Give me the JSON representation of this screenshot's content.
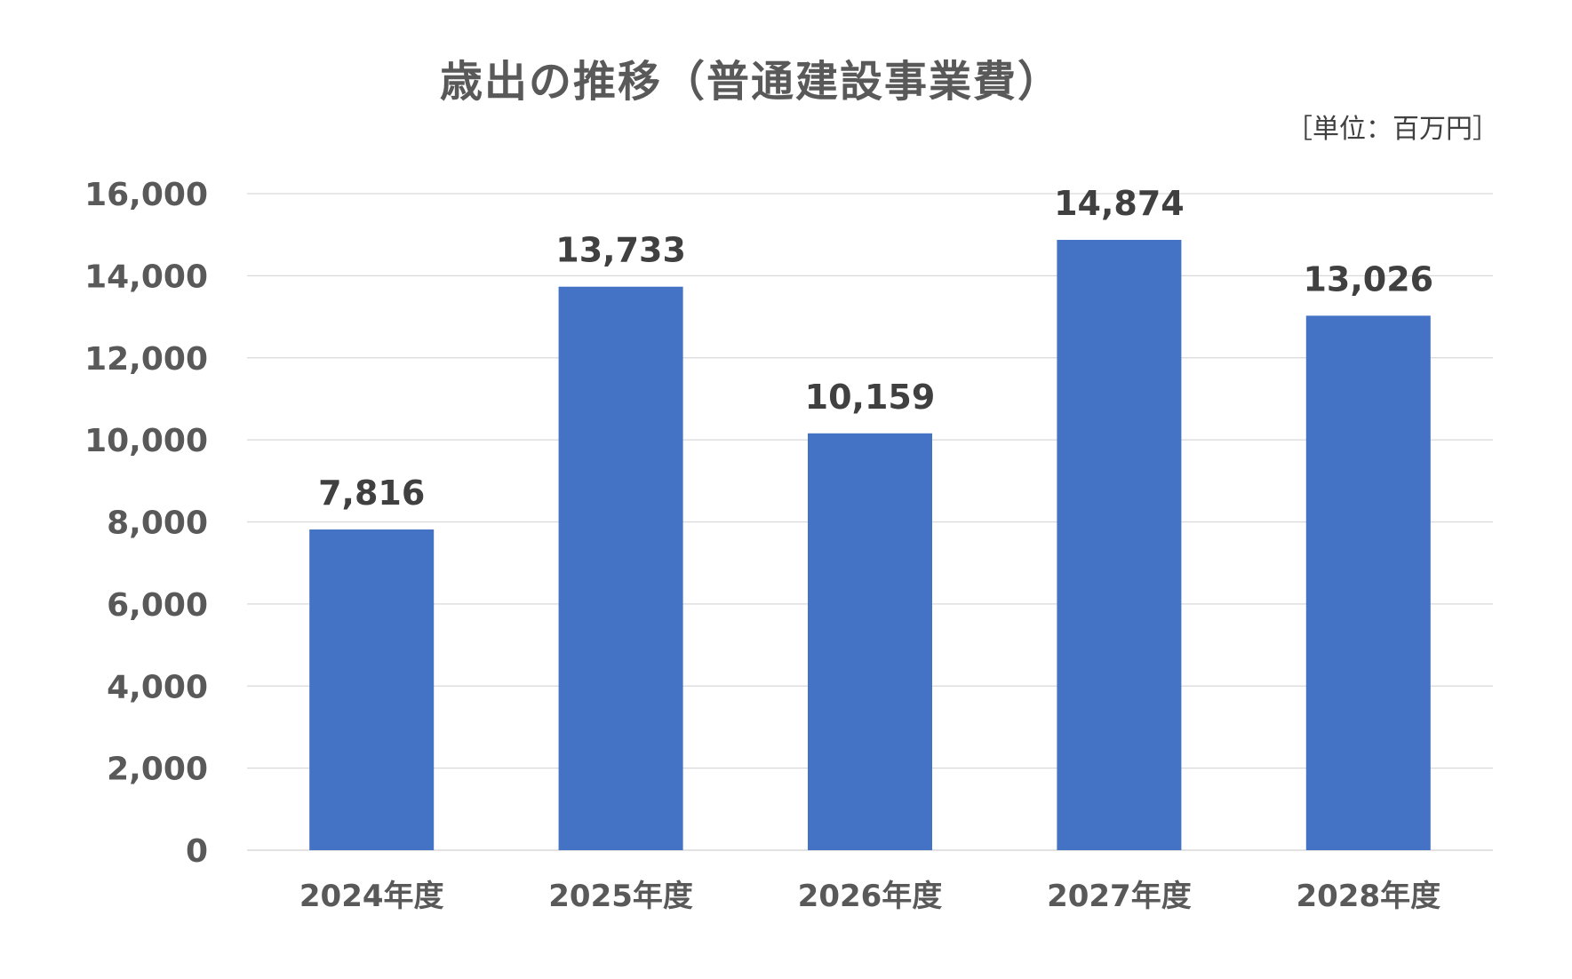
{
  "chart_data": {
    "type": "bar",
    "title": "歳出の推移（普通建設事業費）",
    "unit": "［単位：百万円］",
    "categories": [
      "2024年度",
      "2025年度",
      "2026年度",
      "2027年度",
      "2028年度"
    ],
    "values": [
      7816,
      13733,
      10159,
      14874,
      13026
    ],
    "data_labels": [
      "7,816",
      "13,733",
      "10,159",
      "14,874",
      "13,026"
    ],
    "ylim": [
      0,
      16000
    ],
    "yticks": [
      "0",
      "2,000",
      "4,000",
      "6,000",
      "8,000",
      "10,000",
      "12,000",
      "14,000",
      "16,000"
    ],
    "xlabel": "",
    "ylabel": "",
    "grid": true,
    "bar_color": "#4472C4",
    "grid_color": "#D9D9D9"
  }
}
